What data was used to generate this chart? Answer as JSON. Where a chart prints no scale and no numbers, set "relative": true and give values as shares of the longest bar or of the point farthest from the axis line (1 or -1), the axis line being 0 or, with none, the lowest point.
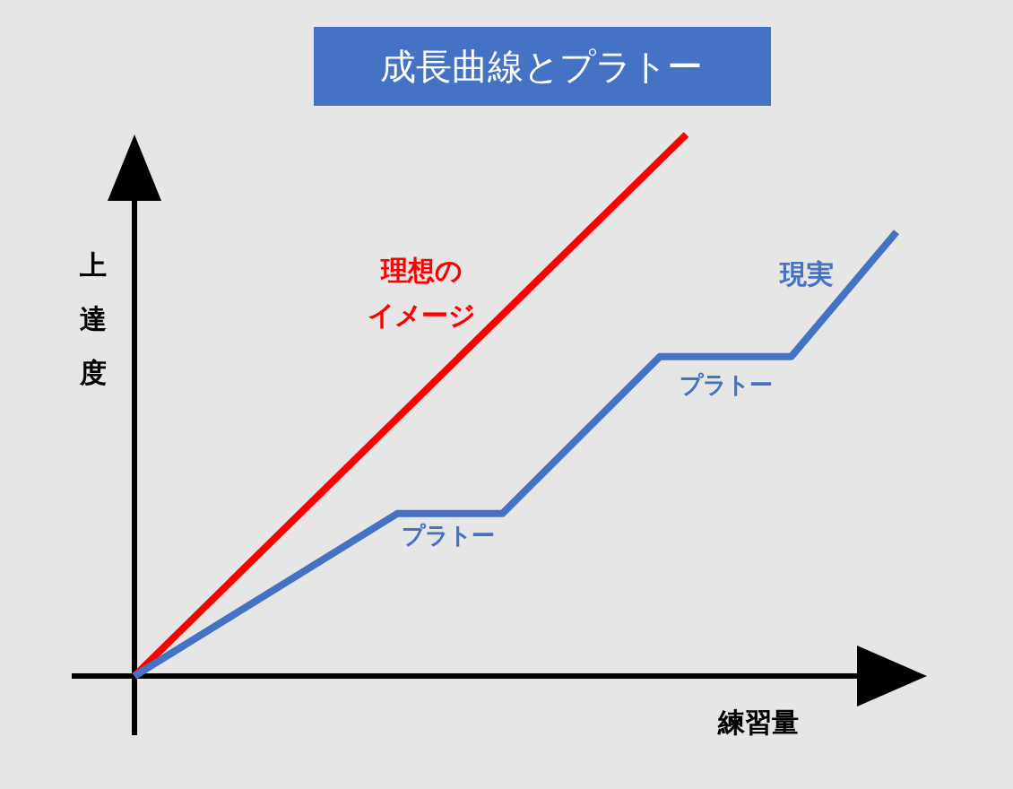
{
  "chart_data": {
    "type": "line",
    "title": "成長曲線とプラトー",
    "xlabel": "練習量",
    "ylabel": "上達度",
    "relative": true,
    "categories": [
      null,
      null,
      null,
      null,
      null,
      null,
      null,
      null,
      null,
      null,
      null,
      null,
      null,
      null,
      null,
      null,
      null,
      null,
      null,
      null,
      null,
      null,
      null,
      null,
      null,
      null,
      null,
      null,
      null,
      null
    ],
    "series": [
      {
        "name": "理想のイメージ",
        "color": "#ff0000",
        "values": [
          0,
          null,
          null,
          null,
          null,
          null,
          null,
          null,
          null,
          null,
          null,
          null,
          null,
          null,
          null,
          null,
          null,
          null,
          null,
          null,
          null,
          1,
          null,
          null,
          null,
          null,
          null,
          null,
          null,
          null
        ]
      },
      {
        "name": "現実",
        "color": "#4472c4",
        "values": [
          0,
          null,
          null,
          null,
          null,
          null,
          null,
          null,
          null,
          null,
          0.3,
          null,
          null,
          null,
          0.3,
          null,
          null,
          null,
          null,
          null,
          0.59,
          null,
          null,
          null,
          null,
          0.59,
          null,
          null,
          null,
          0.82
        ]
      }
    ],
    "annotations": [
      "プラトー",
      "プラトー"
    ]
  }
}
